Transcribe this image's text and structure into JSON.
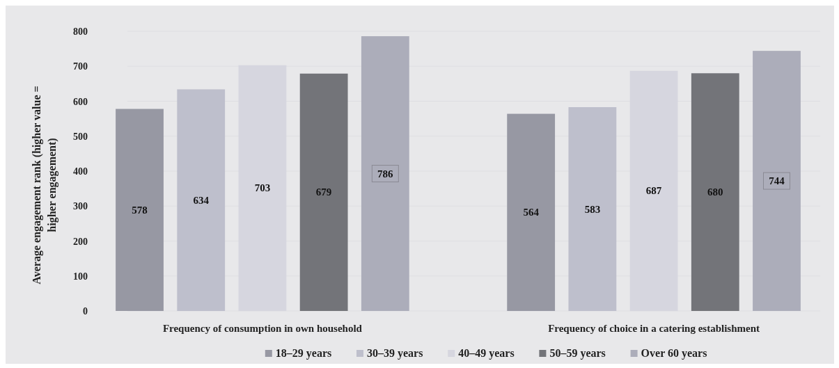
{
  "chart_data": {
    "type": "bar",
    "ylabel": "Average engagement rank (higher value = higher engagement)",
    "categories": [
      "Frequency of consumption in own household",
      "Frequency of choice in a catering establishment"
    ],
    "series": [
      {
        "name": "18–29 years",
        "color": "#9798a3",
        "values": [
          578,
          564
        ]
      },
      {
        "name": "30–39 years",
        "color": "#bebfcc",
        "values": [
          634,
          583
        ]
      },
      {
        "name": "40–49 years",
        "color": "#d6d6df",
        "values": [
          703,
          687
        ]
      },
      {
        "name": "50–59 years",
        "color": "#737479",
        "values": [
          679,
          680
        ]
      },
      {
        "name": "Over 60 years",
        "color": "#acadba",
        "values": [
          786,
          744
        ]
      }
    ],
    "ylim": [
      0,
      800
    ],
    "yticks": [
      0,
      100,
      200,
      300,
      400,
      500,
      600,
      700,
      800
    ],
    "grid": "y",
    "legend": "bottom",
    "data_labels": true
  }
}
